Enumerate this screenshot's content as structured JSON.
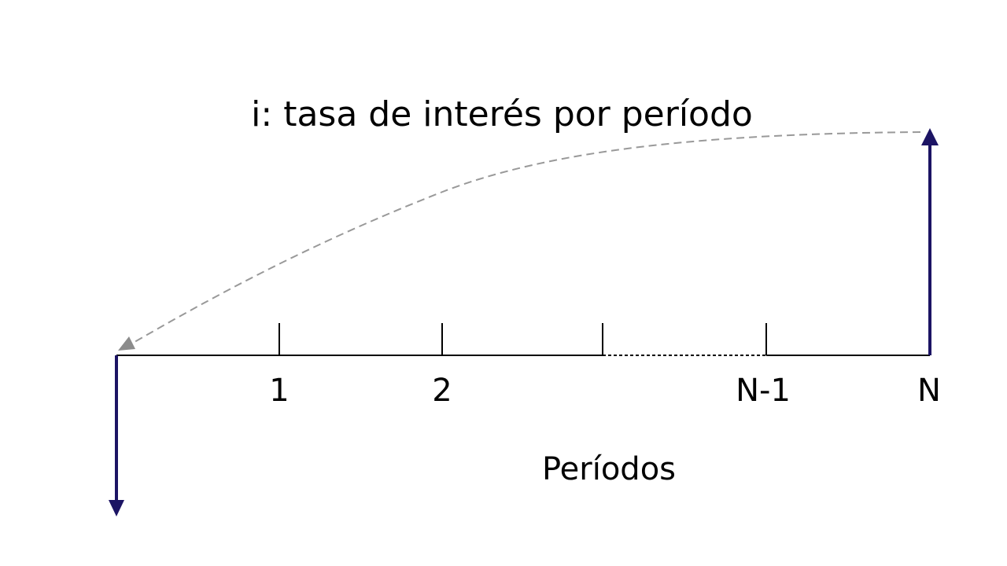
{
  "title": "i: tasa de interés por período",
  "axis_label": "Períodos",
  "tick_labels": [
    "1",
    "2",
    "N-1",
    "N"
  ],
  "colors": {
    "cash_flow_arrow": "#1c1464",
    "discount_curve": "#999999",
    "timeline": "#000000"
  }
}
